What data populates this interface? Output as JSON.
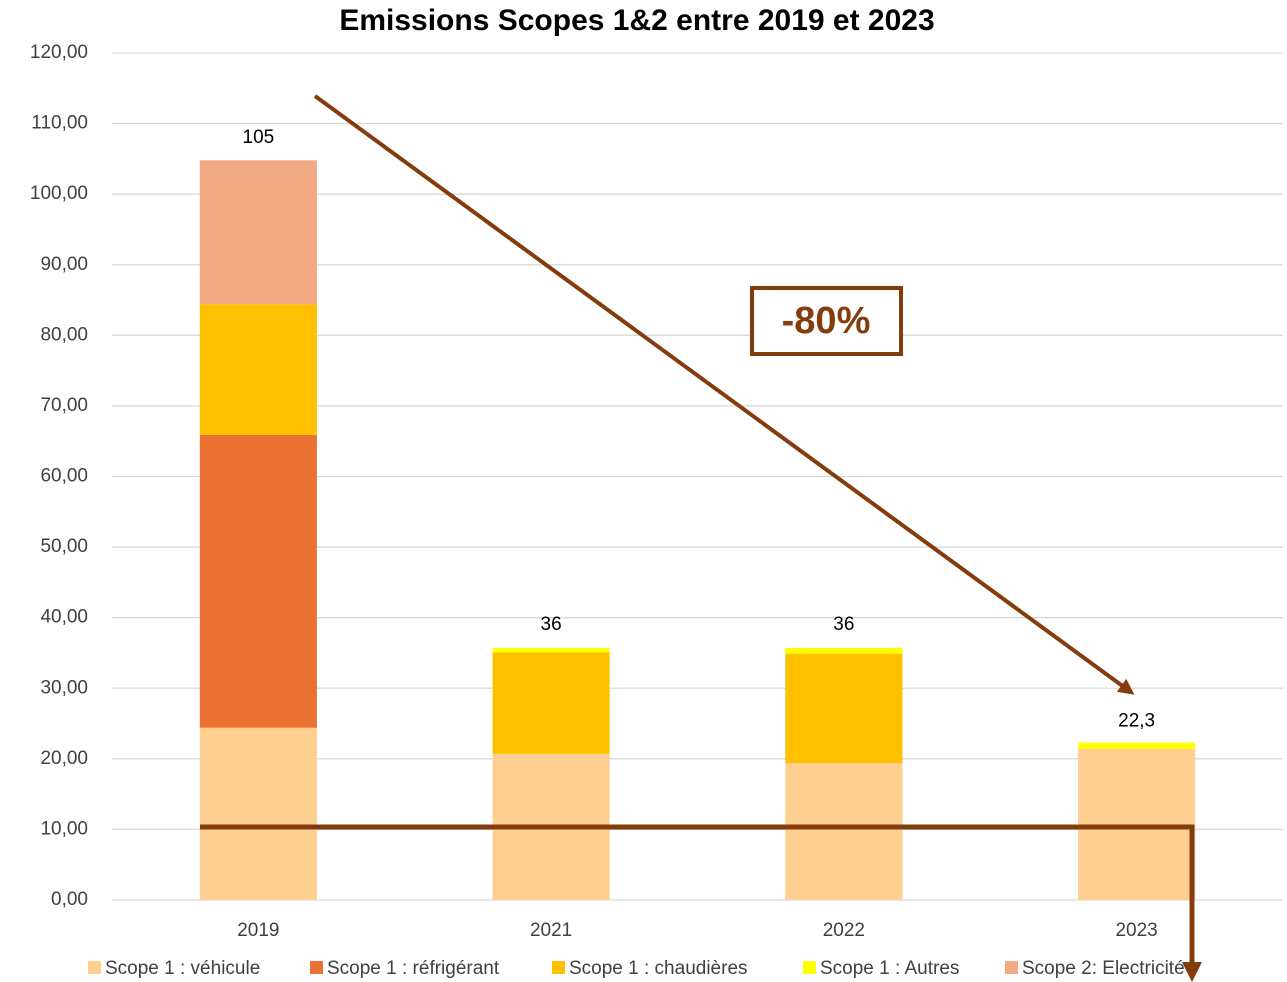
{
  "chart_data": {
    "type": "stacked_bar",
    "title": "Emissions Scopes 1&2 entre 2019 et 2023",
    "categories": [
      "2019",
      "2021",
      "2022",
      "2023"
    ],
    "series": [
      {
        "name": "Scope 1 : véhicule",
        "color": "#fdd092",
        "values": [
          24.4,
          20.7,
          19.4,
          21.4
        ]
      },
      {
        "name": "Scope 1 : réfrigérant",
        "color": "#e97132",
        "values": [
          41.5,
          0,
          0,
          0
        ]
      },
      {
        "name": "Scope 1 : chaudières",
        "color": "#ffc000",
        "values": [
          18.5,
          14.4,
          15.5,
          0
        ]
      },
      {
        "name": "Scope 1 : Autres",
        "color": "#ffff00",
        "values": [
          0,
          0.6,
          0.8,
          0.9
        ]
      },
      {
        "name": "Scope 2: Electricité",
        "color": "#f1a983",
        "values": [
          20.4,
          0,
          0,
          0
        ]
      }
    ],
    "totals": [
      105,
      36,
      36,
      22.3
    ],
    "value_labels": [
      "105",
      "36",
      "36",
      "22,3"
    ],
    "annotation": "-80%",
    "ylim": [
      0,
      120
    ],
    "yticks": [
      {
        "value": 0,
        "label": "0,00"
      },
      {
        "value": 10,
        "label": "10,00"
      },
      {
        "value": 20,
        "label": "20,00"
      },
      {
        "value": 30,
        "label": "30,00"
      },
      {
        "value": 40,
        "label": "40,00"
      },
      {
        "value": 50,
        "label": "50,00"
      },
      {
        "value": 60,
        "label": "60,00"
      },
      {
        "value": 70,
        "label": "70,00"
      },
      {
        "value": 80,
        "label": "80,00"
      },
      {
        "value": 90,
        "label": "90,00"
      },
      {
        "value": 100,
        "label": "100,00"
      },
      {
        "value": 110,
        "label": "110,00"
      },
      {
        "value": 120,
        "label": "120,00"
      }
    ],
    "grid": true,
    "legend": "bottom"
  }
}
